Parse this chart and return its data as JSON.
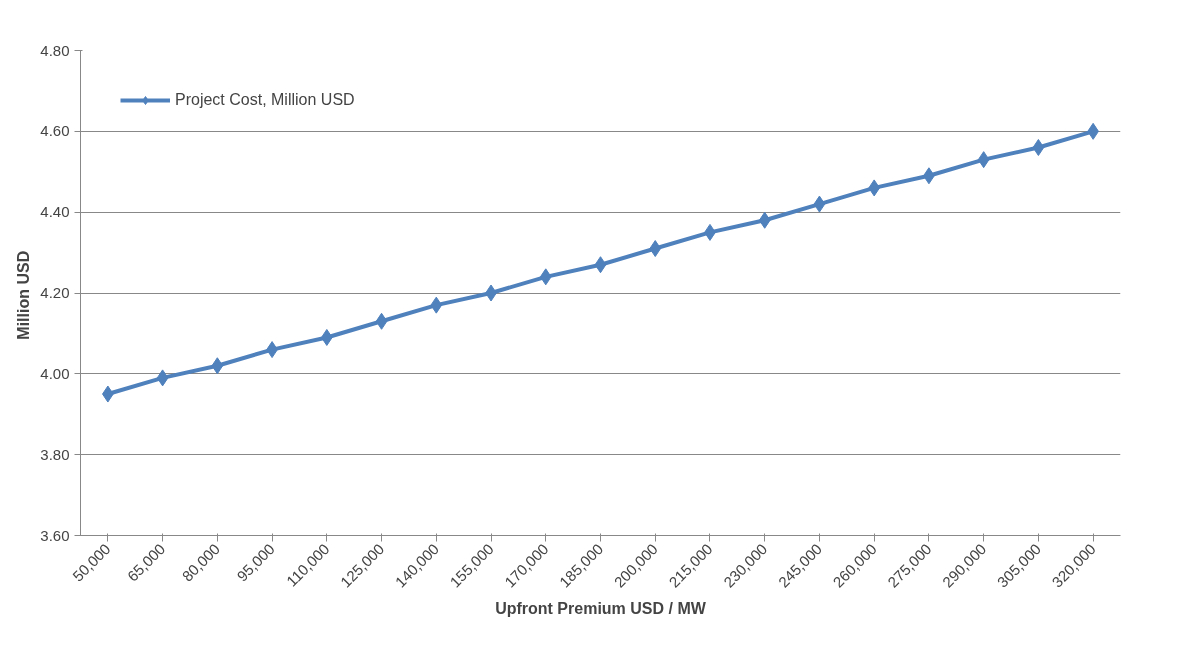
{
  "chart_data": {
    "type": "line",
    "xlabel": "Upfront Premium USD / MW",
    "ylabel": "Million  USD",
    "categories": [
      "50,000",
      "65,000",
      "80,000",
      "95,000",
      "110,000",
      "125,000",
      "140,000",
      "155,000",
      "170,000",
      "185,000",
      "200,000",
      "215,000",
      "230,000",
      "245,000",
      "260,000",
      "275,000",
      "290,000",
      "305,000",
      "320,000"
    ],
    "series": [
      {
        "name": "Project Cost, Million USD",
        "color": "#4f81bd",
        "values": [
          3.95,
          3.99,
          4.02,
          4.06,
          4.09,
          4.13,
          4.17,
          4.2,
          4.24,
          4.27,
          4.31,
          4.35,
          4.38,
          4.42,
          4.46,
          4.49,
          4.53,
          4.56,
          4.6
        ]
      }
    ],
    "ylim": [
      3.6,
      4.8
    ],
    "yticks": [
      {
        "value": 3.6,
        "label": "3.60"
      },
      {
        "value": 3.8,
        "label": "3.80"
      },
      {
        "value": 4.0,
        "label": "4.00"
      },
      {
        "value": 4.2,
        "label": "4.20"
      },
      {
        "value": 4.4,
        "label": "4.40"
      },
      {
        "value": 4.6,
        "label": "4.60"
      },
      {
        "value": 4.8,
        "label": "4.80"
      }
    ],
    "grid": "y",
    "legend": "top left",
    "marker": "diamond",
    "line_style": "solid"
  }
}
